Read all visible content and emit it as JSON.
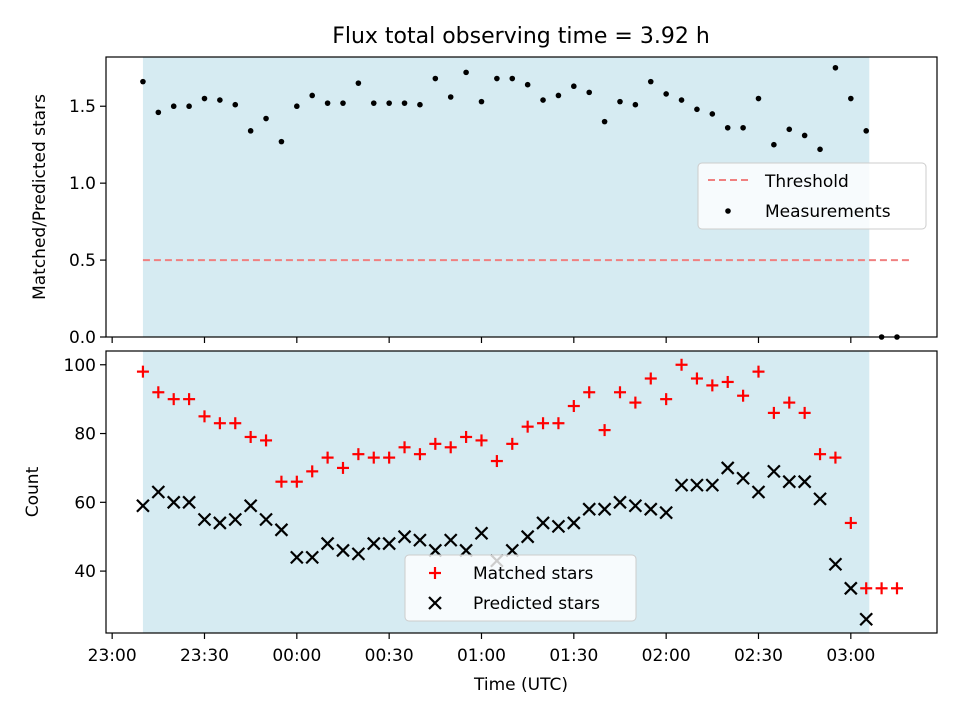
{
  "title": "Flux total observing time = 3.92 h",
  "chart_data": [
    {
      "type": "scatter",
      "ylabel": "Matched/Predicted stars",
      "xlim": [
        "22:58",
        "03:28"
      ],
      "ylim": [
        0,
        1.82
      ],
      "yticks": [
        0.0,
        0.5,
        1.0,
        1.5
      ],
      "ytick_labels": [
        "0.0",
        "0.5",
        "1.0",
        "1.5"
      ],
      "shaded_span": [
        "23:10",
        "03:06"
      ],
      "threshold": {
        "name": "Threshold",
        "value": 0.5,
        "x_range": [
          "23:10",
          "03:20"
        ],
        "color": "#f08080"
      },
      "legend": {
        "placement": "center-right",
        "entries": [
          "Threshold",
          "Measurements"
        ]
      },
      "series": [
        {
          "name": "Measurements",
          "color": "#000000",
          "x": [
            "23:10",
            "23:15",
            "23:20",
            "23:25",
            "23:30",
            "23:35",
            "23:40",
            "23:45",
            "23:50",
            "23:55",
            "00:00",
            "00:05",
            "00:10",
            "00:15",
            "00:20",
            "00:25",
            "00:30",
            "00:35",
            "00:40",
            "00:45",
            "00:50",
            "00:55",
            "01:00",
            "01:05",
            "01:10",
            "01:15",
            "01:20",
            "01:25",
            "01:30",
            "01:35",
            "01:40",
            "01:45",
            "01:50",
            "01:55",
            "02:00",
            "02:05",
            "02:10",
            "02:15",
            "02:20",
            "02:25",
            "02:30",
            "02:35",
            "02:40",
            "02:45",
            "02:50",
            "02:55",
            "03:00",
            "03:05",
            "03:10",
            "03:15"
          ],
          "y": [
            1.66,
            1.46,
            1.5,
            1.5,
            1.55,
            1.54,
            1.51,
            1.34,
            1.42,
            1.27,
            1.5,
            1.57,
            1.52,
            1.52,
            1.65,
            1.52,
            1.52,
            1.52,
            1.51,
            1.68,
            1.56,
            1.72,
            1.53,
            1.68,
            1.68,
            1.64,
            1.54,
            1.57,
            1.63,
            1.59,
            1.4,
            1.53,
            1.51,
            1.66,
            1.58,
            1.54,
            1.48,
            1.45,
            1.36,
            1.36,
            1.55,
            1.25,
            1.35,
            1.31,
            1.22,
            1.75,
            1.55,
            1.34,
            0.0,
            0.0
          ]
        }
      ]
    },
    {
      "type": "scatter",
      "xlabel": "Time (UTC)",
      "ylabel": "Count",
      "xlim": [
        "22:58",
        "03:28"
      ],
      "xticks": [
        "23:00",
        "23:30",
        "00:00",
        "00:30",
        "01:00",
        "01:30",
        "02:00",
        "02:30",
        "03:00"
      ],
      "ylim": [
        22,
        104
      ],
      "yticks": [
        40,
        60,
        80,
        100
      ],
      "ytick_labels": [
        "40",
        "60",
        "80",
        "100"
      ],
      "shaded_span": [
        "23:10",
        "03:06"
      ],
      "legend": {
        "placement": "lower-center",
        "entries": [
          "Matched stars",
          "Predicted stars"
        ]
      },
      "series": [
        {
          "name": "Matched stars",
          "marker": "plus",
          "color": "#ff0000",
          "x": [
            "23:10",
            "23:15",
            "23:20",
            "23:25",
            "23:30",
            "23:35",
            "23:40",
            "23:45",
            "23:50",
            "23:55",
            "00:00",
            "00:05",
            "00:10",
            "00:15",
            "00:20",
            "00:25",
            "00:30",
            "00:35",
            "00:40",
            "00:45",
            "00:50",
            "00:55",
            "01:00",
            "01:05",
            "01:10",
            "01:15",
            "01:20",
            "01:25",
            "01:30",
            "01:35",
            "01:40",
            "01:45",
            "01:50",
            "01:55",
            "02:00",
            "02:05",
            "02:10",
            "02:15",
            "02:20",
            "02:25",
            "02:30",
            "02:35",
            "02:40",
            "02:45",
            "02:50",
            "02:55",
            "03:00",
            "03:05",
            "03:10",
            "03:15"
          ],
          "y": [
            98,
            92,
            90,
            90,
            85,
            83,
            83,
            79,
            78,
            66,
            66,
            69,
            73,
            70,
            74,
            73,
            73,
            76,
            74,
            77,
            76,
            79,
            78,
            72,
            77,
            82,
            83,
            83,
            88,
            92,
            81,
            92,
            89,
            96,
            90,
            100,
            96,
            94,
            95,
            91,
            98,
            86,
            89,
            86,
            74,
            73,
            54,
            35,
            35,
            35
          ]
        },
        {
          "name": "Predicted stars",
          "marker": "x",
          "color": "#000000",
          "x": [
            "23:10",
            "23:15",
            "23:20",
            "23:25",
            "23:30",
            "23:35",
            "23:40",
            "23:45",
            "23:50",
            "23:55",
            "00:00",
            "00:05",
            "00:10",
            "00:15",
            "00:20",
            "00:25",
            "00:30",
            "00:35",
            "00:40",
            "00:45",
            "00:50",
            "00:55",
            "01:00",
            "01:05",
            "01:10",
            "01:15",
            "01:20",
            "01:25",
            "01:30",
            "01:35",
            "01:40",
            "01:45",
            "01:50",
            "01:55",
            "02:00",
            "02:05",
            "02:10",
            "02:15",
            "02:20",
            "02:25",
            "02:30",
            "02:35",
            "02:40",
            "02:45",
            "02:50",
            "02:55",
            "03:00",
            "03:05"
          ],
          "y": [
            59,
            63,
            60,
            60,
            55,
            54,
            55,
            59,
            55,
            52,
            44,
            44,
            48,
            46,
            45,
            48,
            48,
            50,
            49,
            46,
            49,
            46,
            51,
            43,
            46,
            50,
            54,
            53,
            54,
            58,
            58,
            60,
            59,
            58,
            57,
            65,
            65,
            65,
            70,
            67,
            63,
            69,
            66,
            66,
            61,
            42,
            35,
            26
          ]
        }
      ]
    }
  ]
}
